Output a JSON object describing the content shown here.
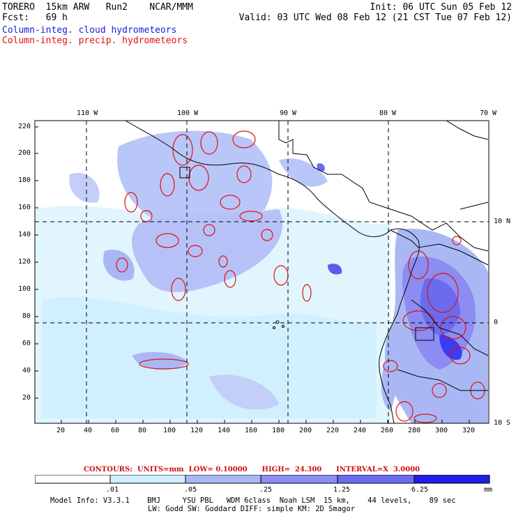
{
  "header": {
    "left_line1": "TORERO  15km ARW   Run2    NCAR/MMM",
    "left_line2": "Fcst:   69 h",
    "right_line1": "Init: 06 UTC Sun 05 Feb 12",
    "right_line2": "Valid: 03 UTC Wed 08 Feb 12 (21 CST Tue 07 Feb 12)",
    "legend_blue": "Column-integ. cloud hydrometeors",
    "legend_red": "Column-integ. precip. hydrometeors"
  },
  "map": {
    "top_lon_labels": [
      "110 W",
      "100 W",
      "90 W",
      "80 W",
      "70 W"
    ],
    "left_y_ticks": [
      "220",
      "200",
      "180",
      "160",
      "140",
      "120",
      "100",
      "80",
      "60",
      "40",
      "20"
    ],
    "bottom_x_ticks": [
      "20",
      "40",
      "60",
      "80",
      "100",
      "120",
      "140",
      "160",
      "180",
      "200",
      "220",
      "240",
      "260",
      "280",
      "300",
      "320"
    ],
    "right_lat_labels": [
      "10 N",
      "0",
      "10 S"
    ]
  },
  "contours": {
    "title": "CONTOURS:  UNITS=mm  LOW= 0.10000      HIGH=  24.300      INTERVAL=X  3.0000"
  },
  "colorbar": {
    "labels": [
      ".01",
      ".05",
      ".25",
      "1.25",
      "6.25"
    ],
    "unit": "mm",
    "colors": [
      "#ffffff",
      "#cfefff",
      "#a9b8f5",
      "#8c8cf2",
      "#6b6bf0",
      "#3c3cf0",
      "#1e1ee8"
    ]
  },
  "footer": {
    "line1": "Model Info: V3.3.1    BMJ     YSU PBL   WDM 6class  Noah LSM  15 km,    44 levels,    89 sec",
    "line2": "LW: Godd SW: Goddard DIFF: simple KM: 2D Smagor"
  }
}
